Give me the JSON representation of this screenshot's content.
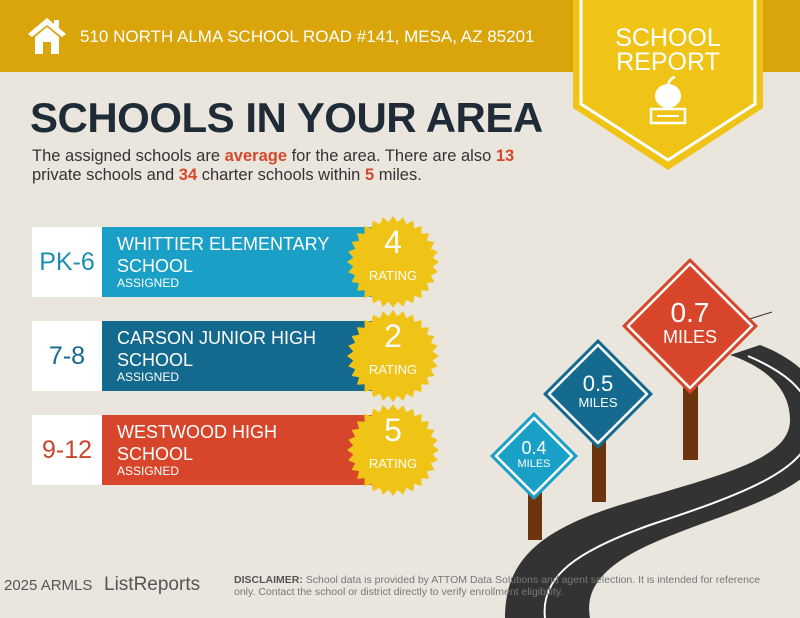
{
  "header": {
    "address": "510 NORTH ALMA SCHOOL ROAD #141, MESA, AZ 85201",
    "icon": "home-icon"
  },
  "badge": {
    "line1": "SCHOOL",
    "line2": "REPORT",
    "icon": "apple-on-book-icon"
  },
  "title": "SCHOOLS IN YOUR AREA",
  "intro": {
    "t1": "The assigned schools are ",
    "rating_word": "average",
    "t2": " for the area. There are also ",
    "private_count": "13",
    "t3": " private schools and ",
    "charter_count": "34",
    "t4": " charter schools within ",
    "miles": "5",
    "t5": " miles."
  },
  "schools": [
    {
      "grades": "PK-6",
      "name": "WHITTIER ELEMENTARY SCHOOL",
      "status": "ASSIGNED",
      "rating": "4",
      "rating_label": "RATING",
      "color": "#1AA0C6",
      "grade_color": "#1A8FB5"
    },
    {
      "grades": "7-8",
      "name": "CARSON JUNIOR HIGH SCHOOL",
      "status": "ASSIGNED",
      "rating": "2",
      "rating_label": "RATING",
      "color": "#136A8E",
      "grade_color": "#136A8E"
    },
    {
      "grades": "9-12",
      "name": "WESTWOOD HIGH SCHOOL",
      "status": "ASSIGNED",
      "rating": "5",
      "rating_label": "RATING",
      "color": "#D7462A",
      "grade_color": "#C9452B"
    }
  ],
  "distances": [
    {
      "value": "0.4",
      "unit": "MILES",
      "color": "#1AA0C6"
    },
    {
      "value": "0.5",
      "unit": "MILES",
      "color": "#136A8E"
    },
    {
      "value": "0.7",
      "unit": "MILES",
      "color": "#D7462A"
    }
  ],
  "footer": {
    "logo": "ListReports",
    "copyright": "2025 ARMLS",
    "disclaimer_label": "DISCLAIMER:",
    "disclaimer": " School data is provided by ATTOM Data Solutions and agent selection. It is intended for reference only. Contact the school or district directly to verify enrollment eligibility."
  }
}
